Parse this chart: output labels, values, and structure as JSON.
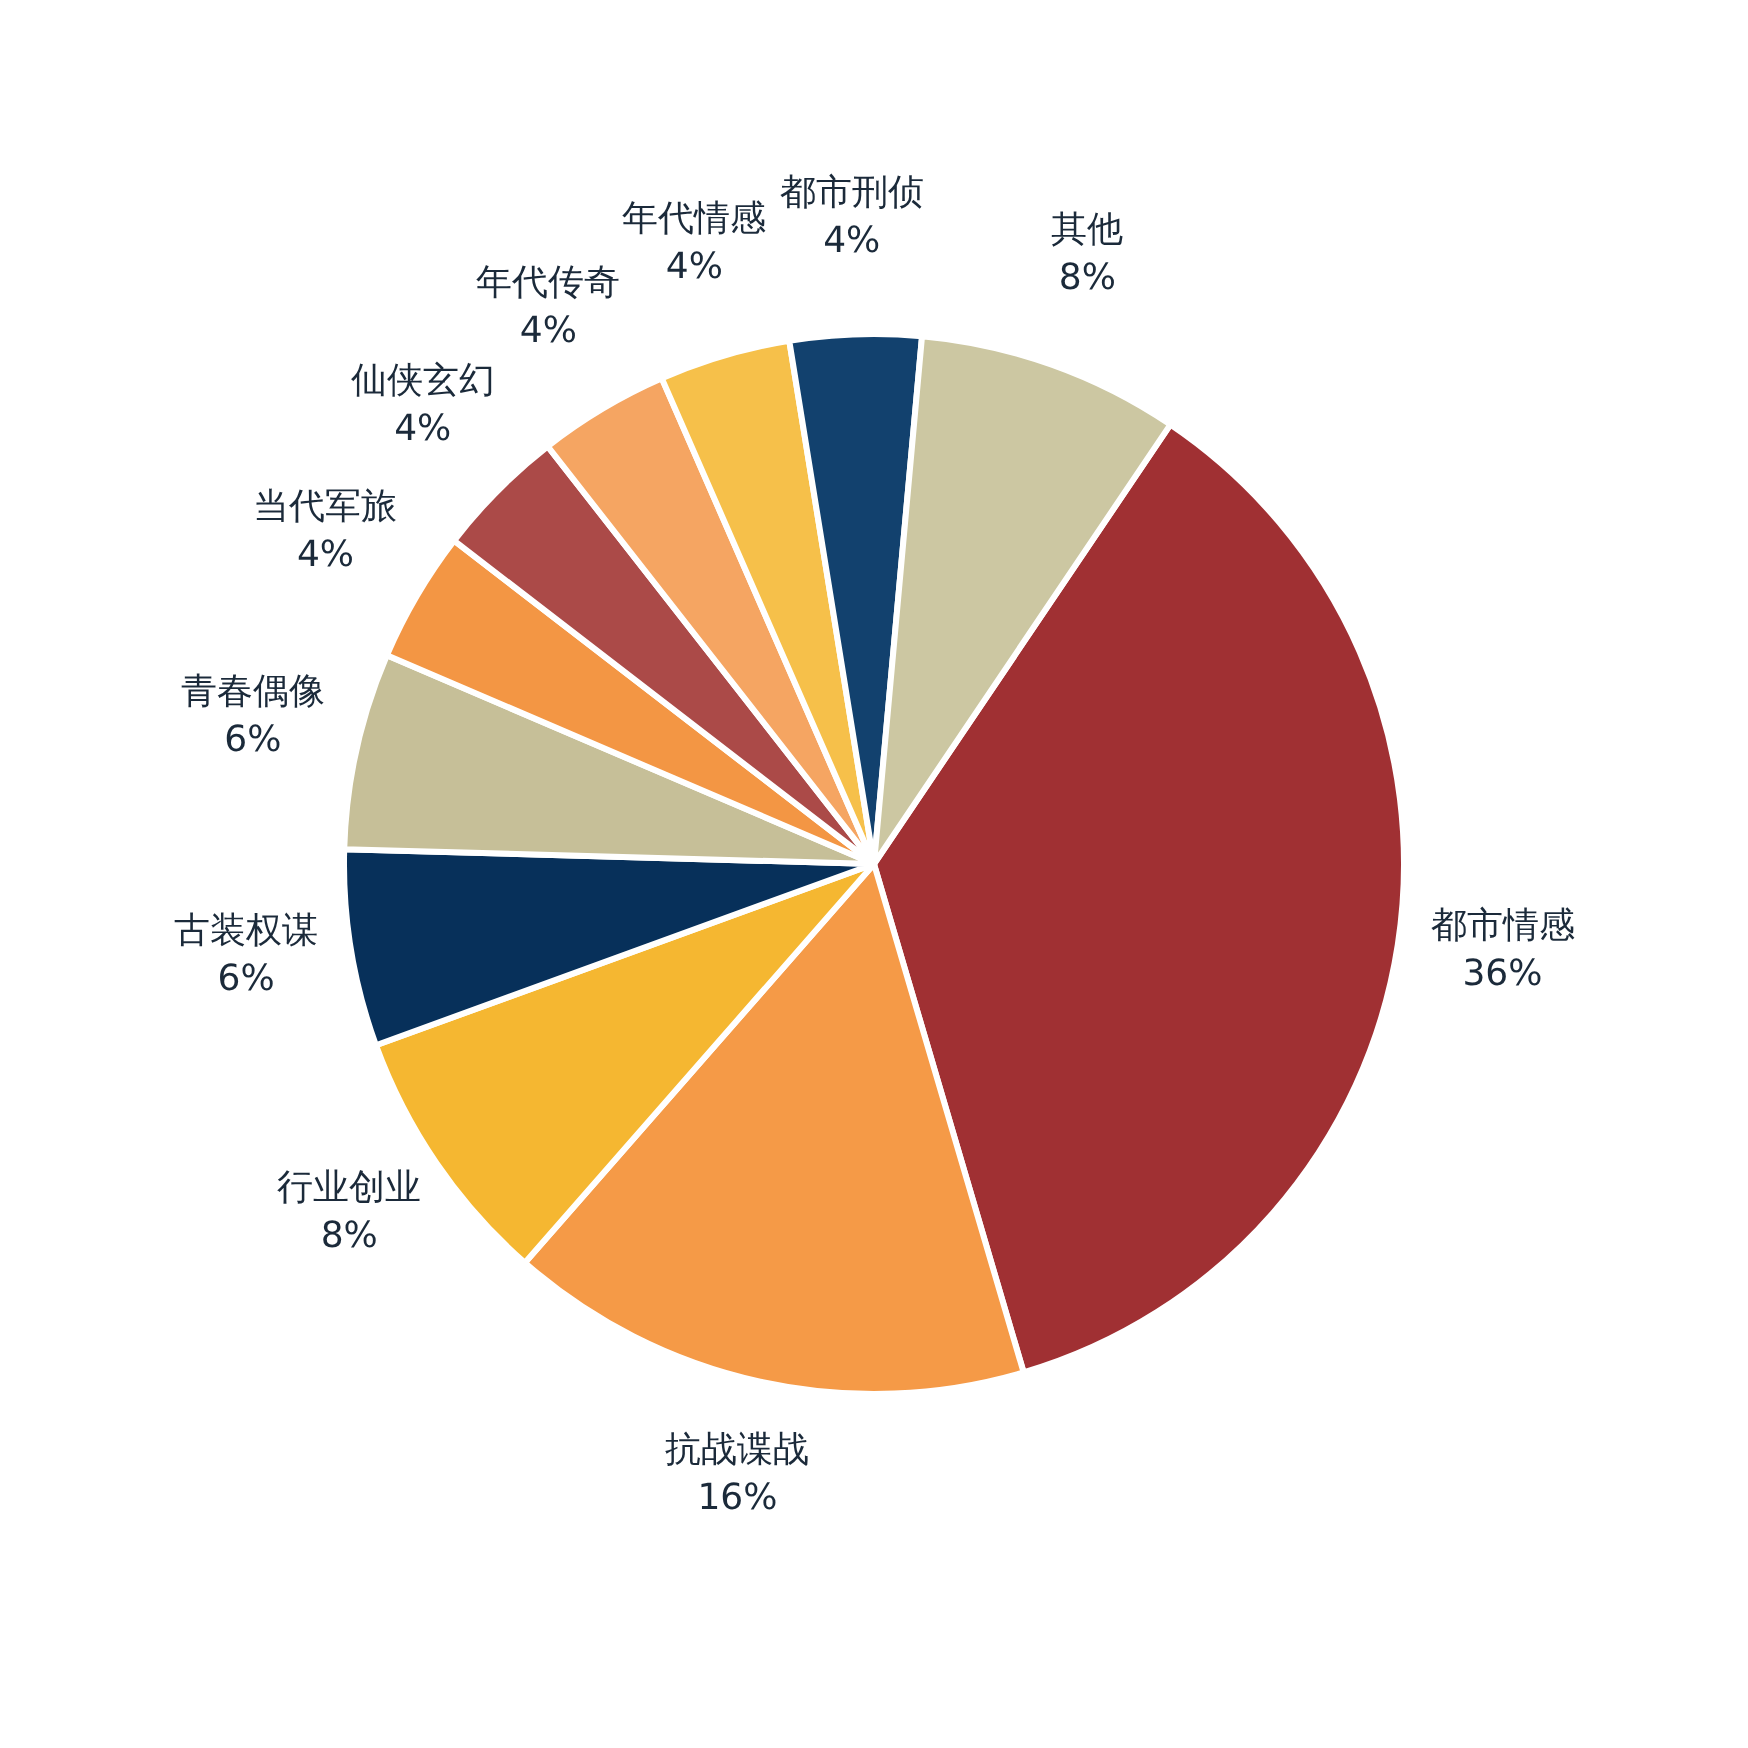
{
  "chart_data": {
    "type": "pie",
    "categories": [
      "都市情感",
      "抗战谍战",
      "行业创业",
      "古装权谋",
      "青春偶像",
      "当代军旅",
      "仙侠玄幻",
      "年代传奇",
      "年代情感",
      "都市刑侦",
      "其他"
    ],
    "values": [
      36,
      16,
      8,
      6,
      6,
      4,
      4,
      4,
      4,
      4,
      8
    ],
    "value_labels": [
      "36%",
      "16%",
      "8%",
      "6%",
      "6%",
      "4%",
      "4%",
      "4%",
      "4%",
      "4%",
      "8%"
    ],
    "colors": [
      "#a03033",
      "#f59a47",
      "#f5b731",
      "#07305a",
      "#c6bf98",
      "#f39644",
      "#ab4a48",
      "#f5a562",
      "#f6c04a",
      "#12416e",
      "#ccc7a2"
    ]
  }
}
